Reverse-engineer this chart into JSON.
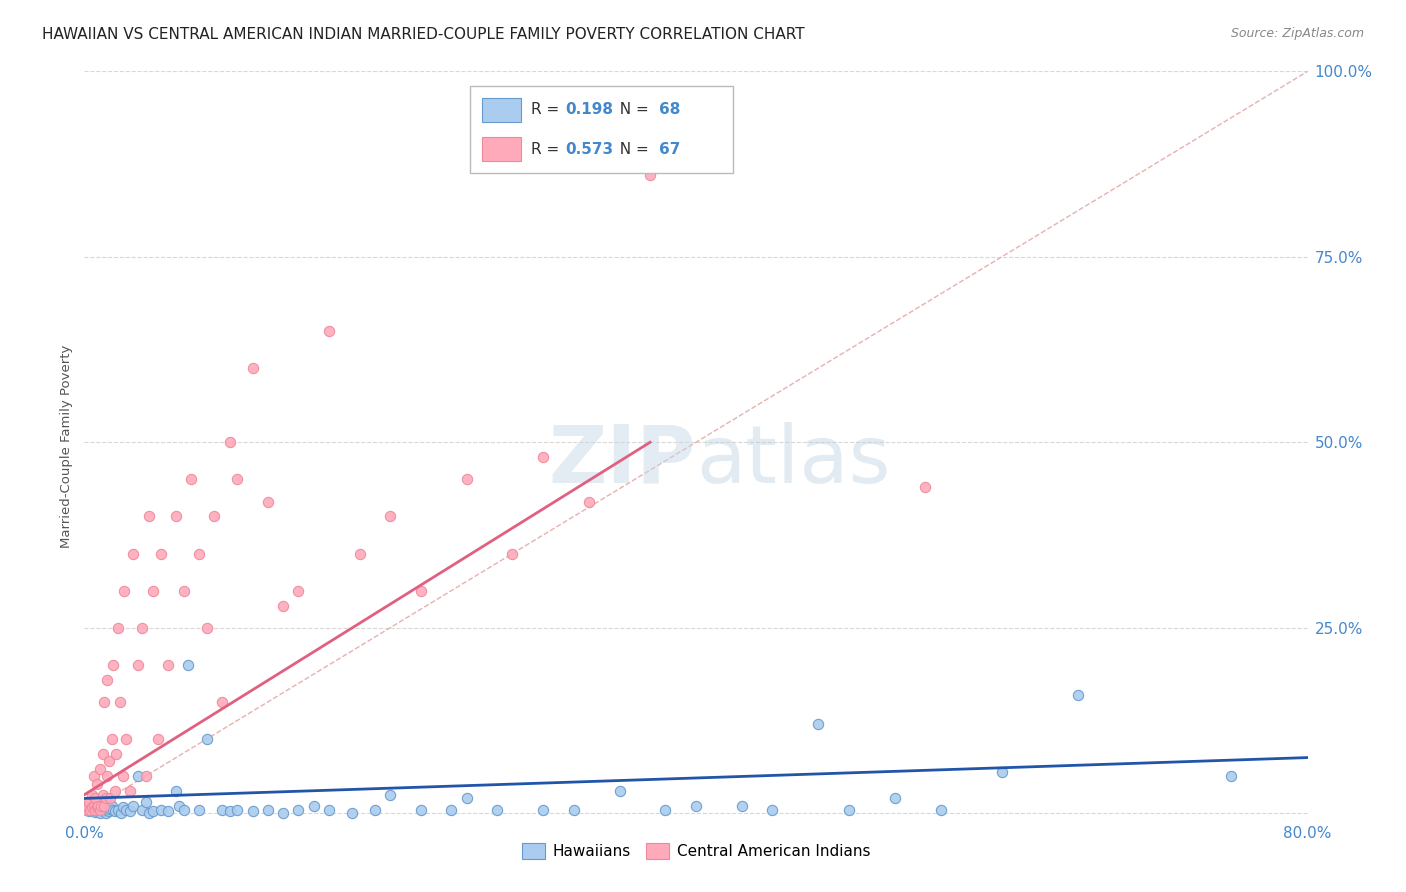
{
  "title": "HAWAIIAN VS CENTRAL AMERICAN INDIAN MARRIED-COUPLE FAMILY POVERTY CORRELATION CHART",
  "source": "Source: ZipAtlas.com",
  "ylabel_label": "Married-Couple Family Poverty",
  "right_ytick_vals": [
    0.0,
    0.25,
    0.5,
    0.75,
    1.0
  ],
  "right_ytick_labels": [
    "",
    "25.0%",
    "50.0%",
    "75.0%",
    "100.0%"
  ],
  "legend_blue_R": "0.198",
  "legend_blue_N": "68",
  "legend_pink_R": "0.573",
  "legend_pink_N": "67",
  "legend_label_hawaiians": "Hawaiians",
  "legend_label_central": "Central American Indians",
  "watermark": "ZIPatlas",
  "background_color": "#ffffff",
  "grid_color": "#d8d8d8",
  "diagonal_line_color": "#e8b0b0",
  "xlim": [
    0.0,
    0.8
  ],
  "ylim": [
    -0.01,
    1.0
  ],
  "hawaiians_x": [
    0.002,
    0.003,
    0.005,
    0.006,
    0.007,
    0.007,
    0.008,
    0.009,
    0.01,
    0.01,
    0.012,
    0.013,
    0.014,
    0.015,
    0.016,
    0.017,
    0.018,
    0.019,
    0.02,
    0.022,
    0.024,
    0.025,
    0.027,
    0.03,
    0.032,
    0.035,
    0.038,
    0.04,
    0.042,
    0.045,
    0.05,
    0.055,
    0.06,
    0.062,
    0.065,
    0.068,
    0.075,
    0.08,
    0.09,
    0.095,
    0.1,
    0.11,
    0.12,
    0.13,
    0.14,
    0.15,
    0.16,
    0.175,
    0.19,
    0.2,
    0.22,
    0.24,
    0.25,
    0.27,
    0.3,
    0.32,
    0.35,
    0.38,
    0.4,
    0.43,
    0.45,
    0.48,
    0.5,
    0.53,
    0.56,
    0.6,
    0.65,
    0.75
  ],
  "hawaiians_y": [
    0.005,
    0.003,
    0.005,
    0.01,
    0.002,
    0.008,
    0.003,
    0.005,
    0.003,
    0.0,
    0.005,
    0.003,
    0.0,
    0.005,
    0.003,
    0.006,
    0.01,
    0.005,
    0.003,
    0.005,
    0.0,
    0.008,
    0.005,
    0.003,
    0.01,
    0.05,
    0.005,
    0.015,
    0.0,
    0.003,
    0.005,
    0.003,
    0.03,
    0.01,
    0.005,
    0.2,
    0.005,
    0.1,
    0.005,
    0.003,
    0.005,
    0.003,
    0.005,
    0.0,
    0.005,
    0.01,
    0.005,
    0.0,
    0.005,
    0.025,
    0.005,
    0.005,
    0.02,
    0.005,
    0.005,
    0.005,
    0.03,
    0.005,
    0.01,
    0.01,
    0.005,
    0.12,
    0.005,
    0.02,
    0.005,
    0.055,
    0.16,
    0.05
  ],
  "central_x": [
    0.001,
    0.002,
    0.003,
    0.004,
    0.005,
    0.005,
    0.006,
    0.006,
    0.007,
    0.007,
    0.008,
    0.008,
    0.009,
    0.01,
    0.01,
    0.011,
    0.012,
    0.012,
    0.013,
    0.013,
    0.014,
    0.015,
    0.015,
    0.016,
    0.017,
    0.018,
    0.019,
    0.02,
    0.021,
    0.022,
    0.023,
    0.025,
    0.026,
    0.027,
    0.03,
    0.032,
    0.035,
    0.038,
    0.04,
    0.042,
    0.045,
    0.048,
    0.05,
    0.055,
    0.06,
    0.065,
    0.07,
    0.075,
    0.08,
    0.085,
    0.09,
    0.095,
    0.1,
    0.11,
    0.12,
    0.13,
    0.14,
    0.16,
    0.18,
    0.2,
    0.22,
    0.25,
    0.28,
    0.3,
    0.33,
    0.37,
    0.55
  ],
  "central_y": [
    0.005,
    0.01,
    0.015,
    0.005,
    0.008,
    0.025,
    0.01,
    0.05,
    0.005,
    0.02,
    0.008,
    0.04,
    0.01,
    0.005,
    0.06,
    0.01,
    0.025,
    0.08,
    0.01,
    0.15,
    0.02,
    0.05,
    0.18,
    0.07,
    0.02,
    0.1,
    0.2,
    0.03,
    0.08,
    0.25,
    0.15,
    0.05,
    0.3,
    0.1,
    0.03,
    0.35,
    0.2,
    0.25,
    0.05,
    0.4,
    0.3,
    0.1,
    0.35,
    0.2,
    0.4,
    0.3,
    0.45,
    0.35,
    0.25,
    0.4,
    0.15,
    0.5,
    0.45,
    0.6,
    0.42,
    0.28,
    0.3,
    0.65,
    0.35,
    0.4,
    0.3,
    0.45,
    0.35,
    0.48,
    0.42,
    0.86,
    0.44
  ],
  "hawaiian_line_x": [
    0.0,
    0.8
  ],
  "hawaiian_line_y": [
    0.02,
    0.075
  ],
  "central_line_x": [
    0.0,
    0.37
  ],
  "central_line_y": [
    0.025,
    0.5
  ],
  "blue_line_color": "#2255aa",
  "pink_line_color": "#e06080",
  "blue_scatter_face": "#aaccee",
  "blue_scatter_edge": "#6699cc",
  "pink_scatter_face": "#ffaabb",
  "pink_scatter_edge": "#ee8899",
  "title_color": "#222222",
  "source_color": "#888888",
  "axis_tick_color": "#4488cc",
  "legend_R_color": "#4488cc",
  "legend_N_color": "#4488cc"
}
